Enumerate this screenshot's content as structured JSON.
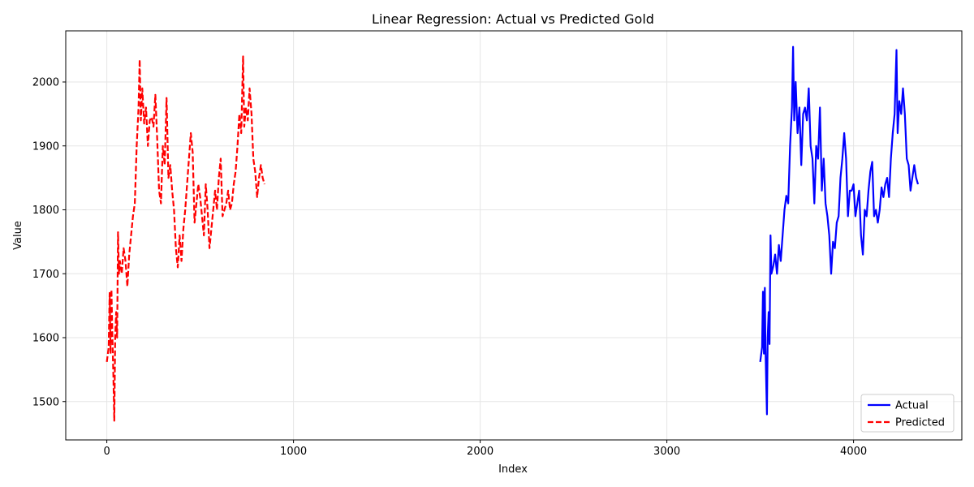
{
  "chart_data": {
    "type": "line",
    "title": "Linear Regression: Actual vs Predicted Gold",
    "xlabel": "Index",
    "ylabel": "Value",
    "xlim": [
      -220,
      4580
    ],
    "ylim": [
      1440,
      2080
    ],
    "x_ticks": [
      0,
      1000,
      2000,
      3000,
      4000
    ],
    "x_tick_labels": [
      "0",
      "1000",
      "2000",
      "3000",
      "4000"
    ],
    "y_ticks": [
      1500,
      1600,
      1700,
      1800,
      1900,
      2000
    ],
    "y_tick_labels": [
      "1500",
      "1600",
      "1700",
      "1800",
      "1900",
      "2000"
    ],
    "grid": true,
    "legend_position": "lower-right",
    "series": [
      {
        "name": "Actual",
        "color": "#0000ff",
        "style": "solid",
        "points": [
          [
            3500,
            1562
          ],
          [
            3510,
            1585
          ],
          [
            3515,
            1672
          ],
          [
            3520,
            1575
          ],
          [
            3525,
            1678
          ],
          [
            3528,
            1590
          ],
          [
            3532,
            1530
          ],
          [
            3536,
            1480
          ],
          [
            3540,
            1600
          ],
          [
            3545,
            1640
          ],
          [
            3550,
            1590
          ],
          [
            3555,
            1760
          ],
          [
            3560,
            1700
          ],
          [
            3570,
            1712
          ],
          [
            3580,
            1730
          ],
          [
            3590,
            1700
          ],
          [
            3600,
            1745
          ],
          [
            3610,
            1720
          ],
          [
            3620,
            1760
          ],
          [
            3630,
            1800
          ],
          [
            3640,
            1822
          ],
          [
            3650,
            1810
          ],
          [
            3660,
            1900
          ],
          [
            3670,
            1960
          ],
          [
            3676,
            2055
          ],
          [
            3682,
            1940
          ],
          [
            3690,
            2000
          ],
          [
            3700,
            1920
          ],
          [
            3710,
            1960
          ],
          [
            3720,
            1870
          ],
          [
            3730,
            1950
          ],
          [
            3740,
            1960
          ],
          [
            3750,
            1940
          ],
          [
            3760,
            1990
          ],
          [
            3770,
            1900
          ],
          [
            3780,
            1880
          ],
          [
            3790,
            1810
          ],
          [
            3800,
            1900
          ],
          [
            3810,
            1880
          ],
          [
            3820,
            1960
          ],
          [
            3830,
            1830
          ],
          [
            3840,
            1880
          ],
          [
            3850,
            1810
          ],
          [
            3860,
            1790
          ],
          [
            3870,
            1760
          ],
          [
            3880,
            1700
          ],
          [
            3890,
            1750
          ],
          [
            3900,
            1740
          ],
          [
            3910,
            1780
          ],
          [
            3920,
            1790
          ],
          [
            3930,
            1850
          ],
          [
            3940,
            1880
          ],
          [
            3950,
            1920
          ],
          [
            3960,
            1880
          ],
          [
            3970,
            1790
          ],
          [
            3980,
            1830
          ],
          [
            3990,
            1830
          ],
          [
            4000,
            1840
          ],
          [
            4010,
            1790
          ],
          [
            4020,
            1810
          ],
          [
            4030,
            1830
          ],
          [
            4040,
            1760
          ],
          [
            4050,
            1730
          ],
          [
            4060,
            1800
          ],
          [
            4070,
            1790
          ],
          [
            4080,
            1830
          ],
          [
            4090,
            1860
          ],
          [
            4100,
            1875
          ],
          [
            4110,
            1790
          ],
          [
            4120,
            1800
          ],
          [
            4130,
            1780
          ],
          [
            4140,
            1800
          ],
          [
            4150,
            1835
          ],
          [
            4160,
            1820
          ],
          [
            4170,
            1840
          ],
          [
            4180,
            1850
          ],
          [
            4190,
            1820
          ],
          [
            4200,
            1880
          ],
          [
            4210,
            1920
          ],
          [
            4220,
            1950
          ],
          [
            4230,
            2050
          ],
          [
            4236,
            1920
          ],
          [
            4245,
            1970
          ],
          [
            4255,
            1950
          ],
          [
            4265,
            1990
          ],
          [
            4275,
            1950
          ],
          [
            4285,
            1880
          ],
          [
            4295,
            1870
          ],
          [
            4305,
            1830
          ],
          [
            4315,
            1850
          ],
          [
            4325,
            1870
          ],
          [
            4335,
            1850
          ],
          [
            4345,
            1840
          ]
        ]
      },
      {
        "name": "Predicted",
        "color": "#ff0000",
        "style": "dashed",
        "points": [
          [
            0,
            1562
          ],
          [
            10,
            1585
          ],
          [
            15,
            1670
          ],
          [
            20,
            1575
          ],
          [
            25,
            1675
          ],
          [
            30,
            1600
          ],
          [
            35,
            1540
          ],
          [
            40,
            1470
          ],
          [
            45,
            1600
          ],
          [
            50,
            1640
          ],
          [
            55,
            1600
          ],
          [
            60,
            1765
          ],
          [
            65,
            1700
          ],
          [
            70,
            1720
          ],
          [
            80,
            1700
          ],
          [
            90,
            1740
          ],
          [
            100,
            1720
          ],
          [
            110,
            1680
          ],
          [
            120,
            1730
          ],
          [
            130,
            1760
          ],
          [
            140,
            1790
          ],
          [
            150,
            1810
          ],
          [
            160,
            1900
          ],
          [
            170,
            1960
          ],
          [
            176,
            2035
          ],
          [
            182,
            1940
          ],
          [
            190,
            1990
          ],
          [
            200,
            1935
          ],
          [
            210,
            1960
          ],
          [
            220,
            1900
          ],
          [
            230,
            1940
          ],
          [
            240,
            1945
          ],
          [
            250,
            1930
          ],
          [
            260,
            1980
          ],
          [
            270,
            1910
          ],
          [
            280,
            1830
          ],
          [
            290,
            1810
          ],
          [
            300,
            1900
          ],
          [
            310,
            1870
          ],
          [
            320,
            1975
          ],
          [
            330,
            1850
          ],
          [
            340,
            1870
          ],
          [
            350,
            1830
          ],
          [
            360,
            1800
          ],
          [
            370,
            1740
          ],
          [
            380,
            1710
          ],
          [
            390,
            1760
          ],
          [
            400,
            1720
          ],
          [
            410,
            1770
          ],
          [
            420,
            1800
          ],
          [
            430,
            1840
          ],
          [
            440,
            1880
          ],
          [
            450,
            1920
          ],
          [
            460,
            1890
          ],
          [
            470,
            1780
          ],
          [
            480,
            1810
          ],
          [
            490,
            1840
          ],
          [
            500,
            1820
          ],
          [
            510,
            1790
          ],
          [
            520,
            1760
          ],
          [
            530,
            1840
          ],
          [
            540,
            1800
          ],
          [
            550,
            1740
          ],
          [
            560,
            1770
          ],
          [
            570,
            1800
          ],
          [
            580,
            1830
          ],
          [
            590,
            1800
          ],
          [
            600,
            1850
          ],
          [
            610,
            1880
          ],
          [
            620,
            1790
          ],
          [
            630,
            1800
          ],
          [
            640,
            1810
          ],
          [
            650,
            1830
          ],
          [
            660,
            1800
          ],
          [
            670,
            1810
          ],
          [
            680,
            1840
          ],
          [
            690,
            1860
          ],
          [
            700,
            1900
          ],
          [
            710,
            1950
          ],
          [
            720,
            1920
          ],
          [
            730,
            2040
          ],
          [
            736,
            1930
          ],
          [
            745,
            1960
          ],
          [
            755,
            1940
          ],
          [
            765,
            1990
          ],
          [
            775,
            1950
          ],
          [
            785,
            1880
          ],
          [
            795,
            1860
          ],
          [
            805,
            1820
          ],
          [
            815,
            1850
          ],
          [
            825,
            1870
          ],
          [
            835,
            1850
          ],
          [
            845,
            1840
          ]
        ]
      }
    ]
  }
}
